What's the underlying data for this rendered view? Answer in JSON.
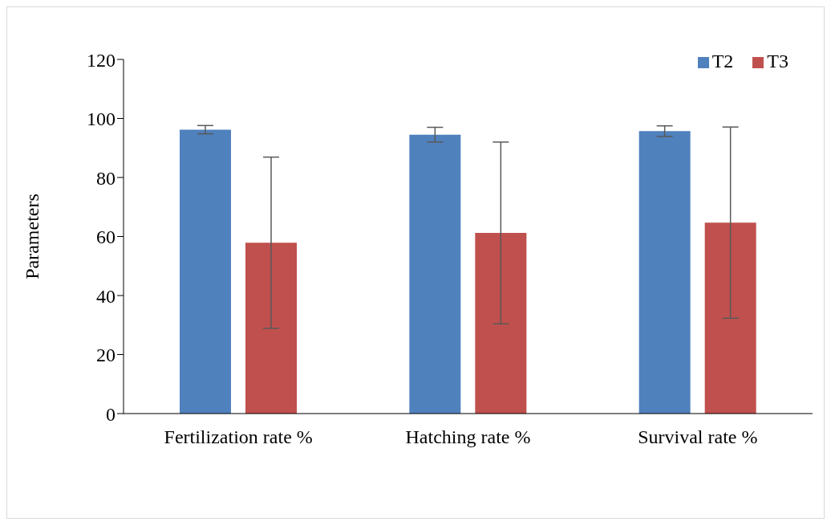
{
  "chart_data": {
    "type": "bar",
    "ylabel": "Parameters",
    "categories": [
      "Fertilization rate %",
      "Hatching rate %",
      "Survival rate %"
    ],
    "series": [
      {
        "name": "T2",
        "color": "#4f81bd",
        "values": [
          96.2,
          94.5,
          95.7
        ],
        "errors": [
          1.4,
          2.5,
          1.8
        ]
      },
      {
        "name": "T3",
        "color": "#c0504d",
        "values": [
          57.9,
          61.2,
          64.7
        ],
        "errors": [
          29,
          30.8,
          32.4
        ]
      }
    ],
    "ylim": [
      0,
      120
    ],
    "yticks": [
      0,
      20,
      40,
      60,
      80,
      100,
      120
    ],
    "grid": false,
    "legend": "top right"
  }
}
